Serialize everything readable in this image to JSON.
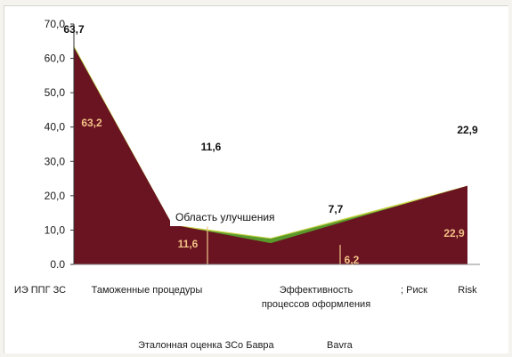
{
  "chart_data": {
    "type": "area",
    "categories": [
      "ИЭ ППГ",
      "Таможенные процедуры",
      "Эффективность процессов оформления",
      "Риск",
      "Risk"
    ],
    "category_labels": [
      {
        "lines": [
          "ИЭ ППГ ЗС"
        ]
      },
      {
        "lines": [
          "Таможенные процедуры"
        ]
      },
      {
        "lines": [
          "Эффективность",
          "процессов оформления"
        ]
      },
      {
        "lines": [
          "; Риск"
        ]
      },
      {
        "lines": [
          "Risk"
        ]
      }
    ],
    "series": [
      {
        "name": "Эталонная оценка ЗСо Бавра",
        "values": [
          63.7,
          11.6,
          7.7,
          15.3,
          22.9
        ],
        "color": "#c8d44a"
      },
      {
        "name": "Bavra",
        "values": [
          63.2,
          11.6,
          6.2,
          14.6,
          22.9
        ],
        "color": "#6a1422"
      }
    ],
    "top_labels": [
      "63,7",
      "11,6",
      "7,7",
      "22,9"
    ],
    "inner_labels": [
      "63,2",
      "11,6",
      "6,2",
      "22,9"
    ],
    "annotation": "Область улучшения",
    "ylim": [
      0,
      70
    ],
    "y_ticks": [
      "0.0",
      "10,0",
      "20,0",
      "30,0",
      "40,0",
      "50,0",
      "60,0",
      "70,0"
    ],
    "legend_text": [
      "Эталонная оценка ЗСо Бавра",
      "Bavra"
    ],
    "legend_position": "bottom",
    "grid": false,
    "colors": {
      "fill": "#6a1422",
      "outer_edge": "#c8d44a",
      "gap_green": "#5a9a2a",
      "divider": "#f0c48a",
      "inner_label": "#f2c185"
    }
  }
}
